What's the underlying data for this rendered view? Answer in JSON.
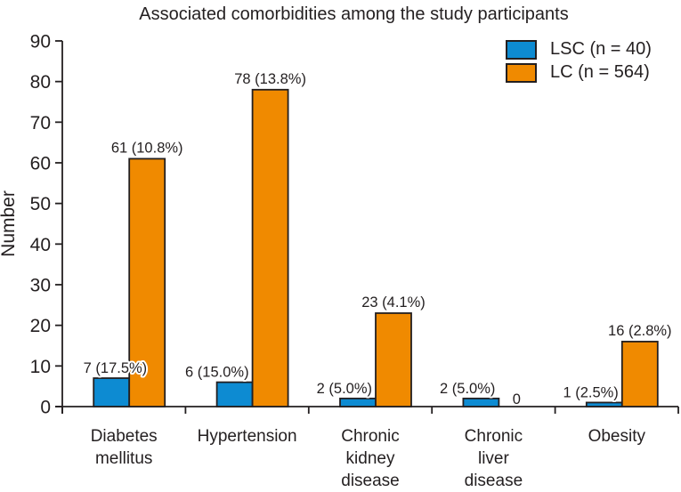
{
  "chart_data": {
    "type": "bar",
    "title": "Associated comorbidities among the study participants",
    "ylabel": "Number",
    "xlabel": "",
    "ylim": [
      0,
      90
    ],
    "yticks": [
      0,
      10,
      20,
      30,
      40,
      50,
      60,
      70,
      80,
      90
    ],
    "grid": false,
    "legend_position": "top-right",
    "categories": [
      "Diabetes\nmellitus",
      "Hypertension",
      "Chronic\nkidney\ndisease",
      "Chronic\nliver\ndisease",
      "Obesity"
    ],
    "series": [
      {
        "name": "LSC (n = 40)",
        "color": "#0D8BD2",
        "values": [
          7,
          6,
          2,
          2,
          1
        ],
        "labels": [
          "7 (17.5%)",
          "6 (15.0%)",
          "2 (5.0%)",
          "2 (5.0%)",
          "1 (2.5%)"
        ]
      },
      {
        "name": "LC (n = 564)",
        "color": "#F08A00",
        "values": [
          61,
          78,
          23,
          0,
          16
        ],
        "labels": [
          "61 (10.8%)",
          "78 (13.8%)",
          "23 (4.1%)",
          "0",
          "16 (2.8%)"
        ]
      }
    ],
    "outline_color": "#231F20",
    "text_color": "#231F20"
  }
}
